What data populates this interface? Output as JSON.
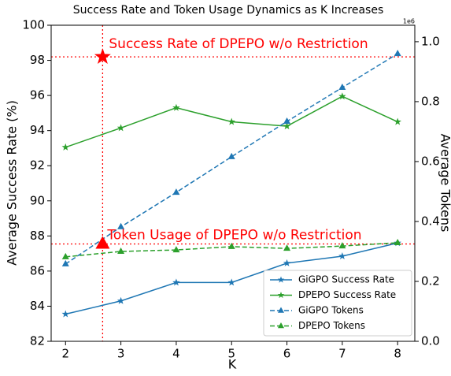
{
  "chart_data": {
    "type": "line",
    "title": "Success Rate and Token Usage Dynamics as K Increases",
    "x_label": "K",
    "y_label": "Average Success Rate (%)",
    "y2_label": "Average Tokens",
    "y2_scale_label": "1e6",
    "x": [
      2,
      3,
      4,
      5,
      6,
      7,
      8
    ],
    "xlim": [
      1.74,
      8.31
    ],
    "xticks": [
      2,
      3,
      4,
      5,
      6,
      7,
      8
    ],
    "ylim": [
      82,
      100
    ],
    "yticks": [
      82,
      84,
      86,
      88,
      90,
      92,
      94,
      96,
      98,
      100
    ],
    "y2lim": [
      0,
      1.055
    ],
    "y2ticks": [
      {
        "value": 0,
        "label": "0.0"
      },
      0.2,
      0.4,
      0.6,
      0.8,
      {
        "value": 1,
        "label": "1.0"
      }
    ],
    "series": [
      {
        "name": "GiGPO Success Rate",
        "color": "#1f77b4",
        "axis": "y",
        "dashed": false,
        "marker": "star",
        "values": [
          83.55,
          84.3,
          85.35,
          85.35,
          86.45,
          86.85,
          87.6
        ]
      },
      {
        "name": "DPEPO Success Rate",
        "color": "#2ca02c",
        "axis": "y",
        "dashed": false,
        "marker": "star",
        "values": [
          93.05,
          94.15,
          95.3,
          94.5,
          94.25,
          95.95,
          94.5
        ]
      },
      {
        "name": "GiGPO Tokens",
        "color": "#1f77b4",
        "axis": "y2",
        "dashed": true,
        "marker": "triangle",
        "values": [
          0.258,
          0.382,
          0.497,
          0.616,
          0.734,
          0.847,
          0.96
        ]
      },
      {
        "name": "DPEPO Tokens",
        "color": "#2ca02c",
        "axis": "y2",
        "dashed": true,
        "marker": "triangle",
        "values": [
          0.282,
          0.3,
          0.305,
          0.316,
          0.31,
          0.318,
          0.329
        ]
      }
    ],
    "reference": {
      "color": "#ff0000",
      "k": 2.67,
      "success_rate": 98.2,
      "tokens": 0.325,
      "success_label": "Success Rate of DPEPO w/o Restriction",
      "tokens_label": "Token Usage of DPEPO w/o Restriction"
    },
    "legend": "lower right"
  }
}
